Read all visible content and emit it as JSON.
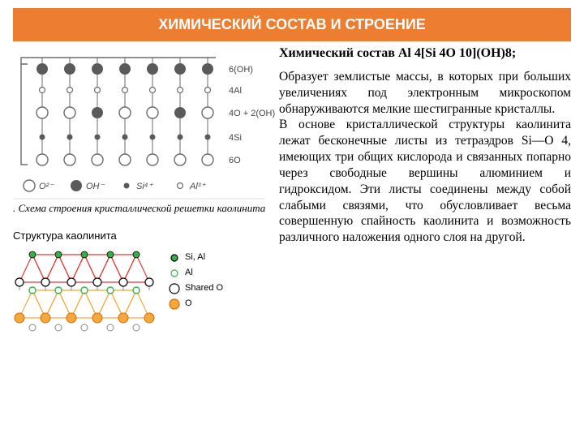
{
  "header": {
    "title": "ХИМИЧЕСКИЙ СОСТАВ И СТРОЕНИЕ",
    "bg": "#ed7d31",
    "fg": "#ffffff"
  },
  "right": {
    "formula_label": "Химический состав",
    "formula_value": "Al 4[Si 4O 10](OH)8;",
    "paragraph": "Образует землистые массы, в которых при больших увеличениях под электронным микроскопом обнаруживаются мелкие шестигранные кристаллы.\nВ основе кристаллической структуры каолинита лежат бесконечные листы из тетраэдров Si—O 4, имеющих три общих кислорода и связанных попарно через свободные вершины алюминием и гидроксидом. Эти листы соединены между собой слабыми связями, что обусловливает весьма совершенную спайность каолинита и возможность различного наложения одного слоя на другой."
  },
  "scheme": {
    "row_labels": [
      "6(OH)",
      "4Al",
      "4O + 2(OH)",
      "4Si",
      "6O"
    ],
    "legend_items": [
      {
        "shape": "big-open",
        "label": "O²⁻"
      },
      {
        "shape": "big-solid",
        "label": "OH⁻"
      },
      {
        "shape": "sm-solid",
        "label": "Si⁴⁺"
      },
      {
        "shape": "sm-open",
        "label": "Al³⁺"
      }
    ],
    "caption": ". Схема строения кристаллической решетки каолинита",
    "colors": {
      "stroke": "#6b6b6b",
      "fill_solid": "#5a5a5a",
      "fill_open": "#ffffff",
      "text": "#454545"
    }
  },
  "structure": {
    "title": "Структура каолинита",
    "legend": [
      {
        "kind": "small-green-fill",
        "label": "Si, Al",
        "stroke": "#000000",
        "fill": "#36b14a",
        "r": 4
      },
      {
        "kind": "small-green-open",
        "label": "Al",
        "stroke": "#36b14a",
        "fill": "#ffffff",
        "r": 4
      },
      {
        "kind": "big-open",
        "label": "Shared O",
        "stroke": "#000000",
        "fill": "#ffffff",
        "r": 6
      },
      {
        "kind": "big-orange",
        "label": "O",
        "stroke": "#d46a00",
        "fill": "#f4a93c",
        "r": 6
      }
    ],
    "colors": {
      "line_upper": "#e03a3a",
      "line_lower": "#f4a93c",
      "bg": "#ffffff"
    }
  }
}
